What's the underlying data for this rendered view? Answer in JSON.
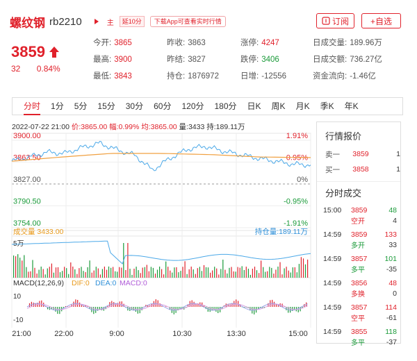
{
  "header": {
    "name": "螺纹钢",
    "code": "rb2210",
    "tag_main": "主",
    "tag_delay": "延10分",
    "tag_app": "下载App可查看实时行情",
    "subscribe_label": "订阅",
    "add_watch_label": "+自选"
  },
  "quote": {
    "price": "3859",
    "change": "32",
    "change_pct": "0.84%",
    "stats": [
      {
        "label": "今开:",
        "value": "3865",
        "color": "red"
      },
      {
        "label": "昨收:",
        "value": "3863",
        "color": "normal"
      },
      {
        "label": "涨停:",
        "value": "4247",
        "color": "red"
      },
      {
        "label": "日成交量:",
        "value": "189.96万",
        "color": "normal"
      },
      {
        "label": "最高:",
        "value": "3900",
        "color": "red"
      },
      {
        "label": "昨结:",
        "value": "3827",
        "color": "normal"
      },
      {
        "label": "跌停:",
        "value": "3406",
        "color": "green"
      },
      {
        "label": "日成交额:",
        "value": "736.27亿",
        "color": "normal"
      },
      {
        "label": "最低:",
        "value": "3843",
        "color": "red"
      },
      {
        "label": "持仓:",
        "value": "1876972",
        "color": "normal"
      },
      {
        "label": "日增:",
        "value": "-12556",
        "color": "normal"
      },
      {
        "label": "资金流向:",
        "value": "-1.46亿",
        "color": "normal"
      }
    ]
  },
  "tabs": [
    "分时",
    "1分",
    "5分",
    "15分",
    "30分",
    "60分",
    "120分",
    "180分",
    "日K",
    "周K",
    "月K",
    "季K",
    "年K"
  ],
  "chart_info": {
    "time": "2022-07-22 21:00",
    "price": "价:3865.00",
    "pct": "幅:0.99%",
    "avg": "均:3865.00",
    "vol": "量:3433",
    "oi": "持:189.11万"
  },
  "chart_data": {
    "type": "line",
    "price_axis": {
      "left_labels": [
        "3900.00",
        "3863.50",
        "3827.00",
        "3790.50",
        "3754.00"
      ],
      "right_labels": [
        "1.91%",
        "0.95%",
        "0%",
        "-0.95%",
        "-1.91%"
      ],
      "ylim": [
        3754,
        3900
      ],
      "prev_settle": 3827
    },
    "x_labels": [
      "21:00",
      "22:00",
      "9:00",
      "10:30",
      "13:30",
      "15:00"
    ],
    "series": [
      {
        "name": "价格",
        "x": [
          "21:00",
          "21:20",
          "21:40",
          "22:00",
          "22:20",
          "22:40",
          "22:59",
          "9:00",
          "9:30",
          "10:00",
          "10:15",
          "10:30",
          "11:00",
          "11:30",
          "13:30",
          "14:00",
          "14:30",
          "15:00"
        ],
        "values": [
          3865,
          3872,
          3880,
          3878,
          3888,
          3895,
          3884,
          3875,
          3850,
          3870,
          3885,
          3890,
          3882,
          3876,
          3870,
          3865,
          3860,
          3859
        ]
      },
      {
        "name": "均价",
        "x": [
          "21:00",
          "22:00",
          "22:59",
          "9:00",
          "10:30",
          "13:30",
          "15:00"
        ],
        "values": [
          3865,
          3872,
          3878,
          3878,
          3876,
          3872,
          3871
        ]
      }
    ],
    "volume_panel": {
      "label": "成交量",
      "value": "3433.00",
      "oi_label": "持仓量",
      "oi_value": "189.11万",
      "ytick": "5万"
    },
    "macd_panel": {
      "label": "MACD(12,26,9)",
      "dif": "DIF:0",
      "dea": "DEA:0",
      "macd": "MACD:0",
      "yticks": [
        "10",
        "-10"
      ]
    }
  },
  "orderbook": {
    "title": "行情报价",
    "rows": [
      {
        "label": "卖一",
        "price": "3859",
        "qty": "1"
      },
      {
        "label": "买一",
        "price": "3858",
        "qty": "1"
      }
    ]
  },
  "ticks": {
    "title": "分时成交",
    "rows": [
      {
        "time": "15:00",
        "price": "3859",
        "vol": "48",
        "vol_color": "green",
        "type": "空开",
        "oi": "4"
      },
      {
        "time": "14:59",
        "price": "3859",
        "vol": "133",
        "vol_color": "red",
        "type": "多开",
        "oi": "33"
      },
      {
        "time": "14:59",
        "price": "3857",
        "vol": "101",
        "vol_color": "green",
        "type": "多平",
        "oi": "-35"
      },
      {
        "time": "14:59",
        "price": "3856",
        "vol": "48",
        "vol_color": "red",
        "type": "多换",
        "oi": "0"
      },
      {
        "time": "14:59",
        "price": "3857",
        "vol": "114",
        "vol_color": "red",
        "type": "空平",
        "oi": "-61"
      },
      {
        "time": "14:59",
        "price": "3855",
        "vol": "118",
        "vol_color": "green",
        "type": "多平",
        "oi": "-37"
      }
    ]
  },
  "colors": {
    "up": "#e0212b",
    "down": "#1a9a39",
    "price_line": "#4aa8e8",
    "avg_line": "#f0a040"
  }
}
